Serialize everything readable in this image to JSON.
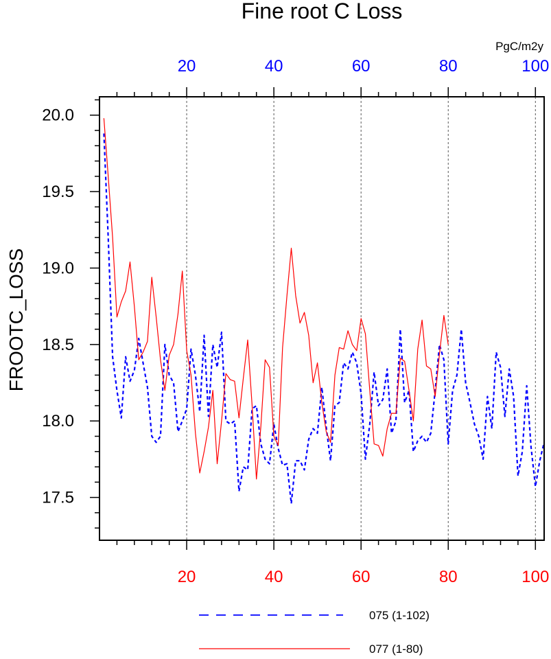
{
  "chart_data": {
    "type": "line",
    "title": "Fine root C Loss",
    "units": "PgC/m2y",
    "ylabel": "FROOTC_LOSS",
    "xlabel": "",
    "ylim": [
      17.22,
      20.12
    ],
    "yticks": [
      17.5,
      18.0,
      18.5,
      19.0,
      19.5,
      20.0
    ],
    "ytick_labels": [
      "17.5",
      "18.0",
      "18.5",
      "19.0",
      "19.5",
      "20.0"
    ],
    "top_axis": {
      "range": [
        0,
        102
      ],
      "ticks": [
        20,
        40,
        60,
        80,
        100
      ],
      "labels": [
        "20",
        "40",
        "60",
        "80",
        "100"
      ],
      "color": "#0000ff"
    },
    "bottom_axis": {
      "range": [
        0,
        102
      ],
      "ticks": [
        20,
        40,
        60,
        80,
        100
      ],
      "labels": [
        "20",
        "40",
        "60",
        "80",
        "100"
      ],
      "color": "#ff0000"
    },
    "grid": "vertical-dashed",
    "legend_position": "bottom",
    "series": [
      {
        "name": "075 (1-102)",
        "color": "#0000ff",
        "style": "dashed",
        "x_start": 1,
        "values": [
          19.88,
          19.2,
          18.42,
          18.2,
          18.02,
          18.42,
          18.26,
          18.33,
          18.54,
          18.38,
          18.22,
          17.9,
          17.86,
          17.9,
          18.5,
          18.3,
          18.25,
          17.93,
          18.0,
          18.08,
          18.47,
          18.3,
          18.06,
          18.56,
          18.03,
          18.5,
          18.35,
          18.58,
          18.0,
          17.98,
          18.0,
          17.54,
          17.7,
          17.68,
          18.08,
          18.1,
          17.85,
          17.75,
          17.72,
          17.98,
          17.82,
          17.71,
          17.72,
          17.46,
          17.74,
          17.74,
          17.68,
          17.88,
          17.95,
          17.92,
          18.22,
          17.96,
          17.74,
          18.1,
          18.12,
          18.38,
          18.34,
          18.45,
          18.38,
          18.18,
          17.75,
          17.98,
          18.32,
          18.1,
          18.14,
          18.34,
          17.92,
          18.0,
          18.6,
          18.12,
          18.2,
          17.8,
          17.87,
          17.9,
          17.86,
          17.92,
          18.2,
          18.5,
          18.4,
          17.85,
          18.2,
          18.3,
          18.6,
          18.25,
          18.12,
          17.98,
          17.9,
          17.75,
          18.16,
          17.95,
          18.45,
          18.35,
          18.03,
          18.34,
          18.16,
          17.64,
          17.8,
          18.23,
          17.83,
          17.57,
          17.74,
          17.86
        ]
      },
      {
        "name": "077 (1-80)",
        "color": "#ff0000",
        "style": "solid",
        "x_start": 1,
        "values": [
          19.98,
          19.6,
          19.2,
          18.68,
          18.78,
          18.85,
          19.04,
          18.75,
          18.4,
          18.45,
          18.52,
          18.94,
          18.68,
          18.4,
          18.2,
          18.43,
          18.5,
          18.7,
          18.98,
          18.46,
          18.3,
          17.92,
          17.66,
          17.8,
          17.96,
          18.2,
          17.72,
          18.0,
          18.31,
          18.27,
          18.26,
          18.02,
          18.28,
          18.53,
          18.1,
          17.62,
          17.96,
          18.4,
          18.35,
          17.9,
          17.84,
          18.48,
          18.82,
          19.13,
          18.82,
          18.64,
          18.71,
          18.56,
          18.25,
          18.38,
          18.12,
          17.93,
          17.86,
          18.3,
          18.48,
          18.47,
          18.59,
          18.5,
          18.46,
          18.67,
          18.57,
          18.2,
          17.85,
          17.84,
          17.77,
          17.95,
          18.05,
          18.05,
          18.41,
          18.39,
          18.2,
          18.0,
          18.47,
          18.66,
          18.36,
          18.34,
          18.16,
          18.44,
          18.69,
          18.5
        ]
      }
    ]
  }
}
